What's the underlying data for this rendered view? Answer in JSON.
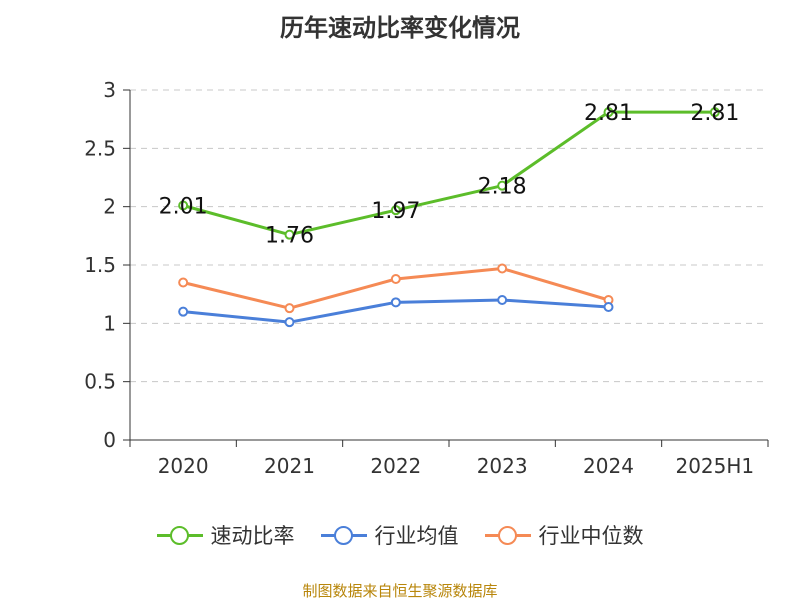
{
  "chart_title": "历年速动比率变化情况",
  "source_note": "制图数据来自恒生聚源数据库",
  "colors": {
    "series": [
      "#5cbd2a",
      "#4a7fd9",
      "#f58a55"
    ],
    "grid": "#c8c8c8",
    "axis": "#333333",
    "text": "#333333",
    "source": "#b8860b"
  },
  "chart_data": {
    "type": "line",
    "title": "历年速动比率变化情况",
    "categories": [
      "2020",
      "2021",
      "2022",
      "2023",
      "2024",
      "2025H1"
    ],
    "ylim": [
      0,
      3
    ],
    "yticks": [
      "0",
      "0.5",
      "1",
      "1.5",
      "2",
      "2.5",
      "3"
    ],
    "grid": true,
    "legend_position": "bottom",
    "series": [
      {
        "name": "速动比率",
        "values": [
          2.01,
          1.76,
          1.97,
          2.18,
          2.81,
          2.81
        ],
        "labels": [
          "2.01",
          "1.76",
          "1.97",
          "2.18",
          "2.81",
          "2.81"
        ]
      },
      {
        "name": "行业均值",
        "values": [
          1.1,
          1.01,
          1.18,
          1.2,
          1.14,
          null
        ]
      },
      {
        "name": "行业中位数",
        "values": [
          1.35,
          1.13,
          1.38,
          1.47,
          1.2,
          null
        ]
      }
    ]
  }
}
